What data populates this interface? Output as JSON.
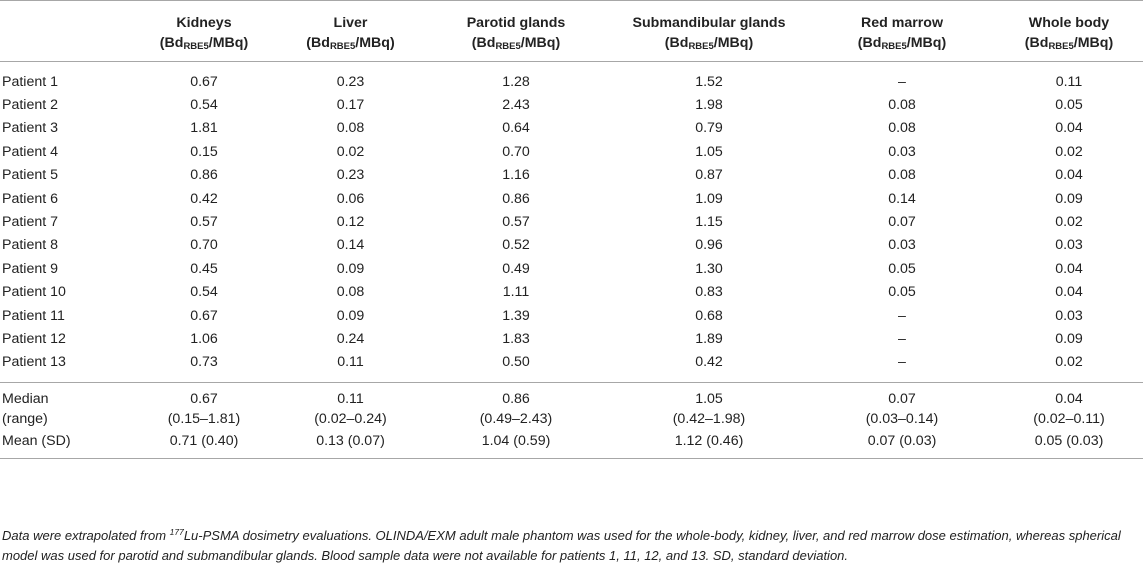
{
  "table": {
    "corner": "",
    "unit_prefix": "Bd",
    "unit_sub": "RBE5",
    "unit_suffix": "/MBq",
    "headers": [
      "Kidneys",
      "Liver",
      "Parotid glands",
      "Submandibular glands",
      "Red marrow",
      "Whole body"
    ],
    "rows": [
      {
        "label": "Patient 1",
        "values": [
          "0.67",
          "0.23",
          "1.28",
          "1.52",
          "–",
          "0.11"
        ]
      },
      {
        "label": "Patient 2",
        "values": [
          "0.54",
          "0.17",
          "2.43",
          "1.98",
          "0.08",
          "0.05"
        ]
      },
      {
        "label": "Patient 3",
        "values": [
          "1.81",
          "0.08",
          "0.64",
          "0.79",
          "0.08",
          "0.04"
        ]
      },
      {
        "label": "Patient 4",
        "values": [
          "0.15",
          "0.02",
          "0.70",
          "1.05",
          "0.03",
          "0.02"
        ]
      },
      {
        "label": "Patient 5",
        "values": [
          "0.86",
          "0.23",
          "1.16",
          "0.87",
          "0.08",
          "0.04"
        ]
      },
      {
        "label": "Patient 6",
        "values": [
          "0.42",
          "0.06",
          "0.86",
          "1.09",
          "0.14",
          "0.09"
        ]
      },
      {
        "label": "Patient 7",
        "values": [
          "0.57",
          "0.12",
          "0.57",
          "1.15",
          "0.07",
          "0.02"
        ]
      },
      {
        "label": "Patient 8",
        "values": [
          "0.70",
          "0.14",
          "0.52",
          "0.96",
          "0.03",
          "0.03"
        ]
      },
      {
        "label": "Patient 9",
        "values": [
          "0.45",
          "0.09",
          "0.49",
          "1.30",
          "0.05",
          "0.04"
        ]
      },
      {
        "label": "Patient 10",
        "values": [
          "0.54",
          "0.08",
          "1.11",
          "0.83",
          "0.05",
          "0.04"
        ]
      },
      {
        "label": "Patient 11",
        "values": [
          "0.67",
          "0.09",
          "1.39",
          "0.68",
          "–",
          "0.03"
        ]
      },
      {
        "label": "Patient 12",
        "values": [
          "1.06",
          "0.24",
          "1.83",
          "1.89",
          "–",
          "0.09"
        ]
      },
      {
        "label": "Patient 13",
        "values": [
          "0.73",
          "0.11",
          "0.50",
          "0.42",
          "–",
          "0.02"
        ]
      }
    ],
    "stats": {
      "median_label": "Median",
      "range_label": "(range)",
      "median_values": [
        "0.67",
        "0.11",
        "0.86",
        "1.05",
        "0.07",
        "0.04"
      ],
      "range_values": [
        "(0.15–1.81)",
        "(0.02–0.24)",
        "(0.49–2.43)",
        "(0.42–1.98)",
        "(0.03–0.14)",
        "(0.02–0.11)"
      ],
      "mean_label": "Mean (SD)",
      "mean_values": [
        "0.71 (0.40)",
        "0.13 (0.07)",
        "1.04 (0.59)",
        "1.12 (0.46)",
        "0.07 (0.03)",
        "0.05 (0.03)"
      ]
    }
  },
  "footnote": {
    "before_sup": "Data were extrapolated from ",
    "sup": "177",
    "after_sup": "Lu-PSMA dosimetry evaluations. OLINDA/EXM adult male phantom was used for the whole-body, kidney, liver, and red marrow dose estimation, whereas spherical model was used for parotid and submandibular glands. Blood sample data were not available for patients 1, 11, 12, and 13. SD, standard deviation."
  }
}
